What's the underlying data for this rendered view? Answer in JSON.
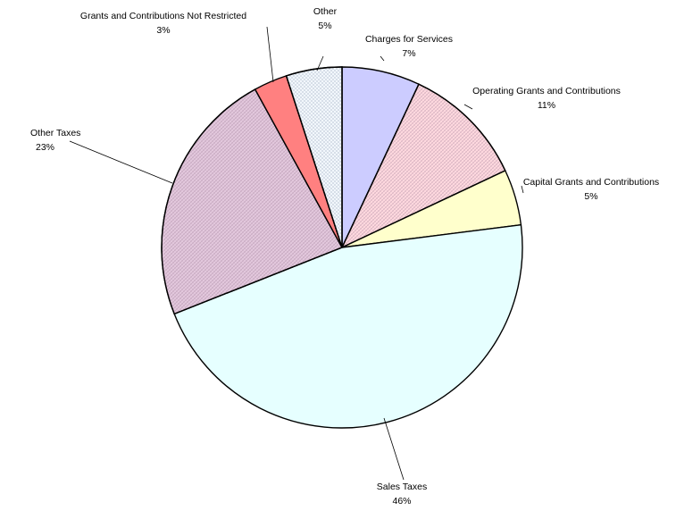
{
  "chart_data": {
    "type": "pie",
    "slices": [
      {
        "label": "Charges for Services",
        "value": 7,
        "value_label": "7%",
        "color": "#ccccff",
        "pattern": "none"
      },
      {
        "label": "Operating Grants and Contributions",
        "value": 11,
        "value_label": "11%",
        "color": "#ffd9df",
        "pattern": "crosshatch"
      },
      {
        "label": "Capital Grants and Contributions",
        "value": 5,
        "value_label": "5%",
        "color": "#ffffcc",
        "pattern": "none"
      },
      {
        "label": "Sales Taxes",
        "value": 46,
        "value_label": "46%",
        "color": "#e6ffff",
        "pattern": "none"
      },
      {
        "label": "Other Taxes",
        "value": 23,
        "value_label": "23%",
        "color": "#e3c8dd",
        "pattern": "crosshatch"
      },
      {
        "label": "Grants and Contributions Not Restricted",
        "value": 3,
        "value_label": "3%",
        "color": "#ff8080",
        "pattern": "none"
      },
      {
        "label": "Other",
        "value": 5,
        "value_label": "5%",
        "color": "#f2f7fc",
        "pattern": "dots"
      }
    ],
    "start_angle_deg": 0,
    "direction": "clockwise",
    "legend": "none"
  }
}
